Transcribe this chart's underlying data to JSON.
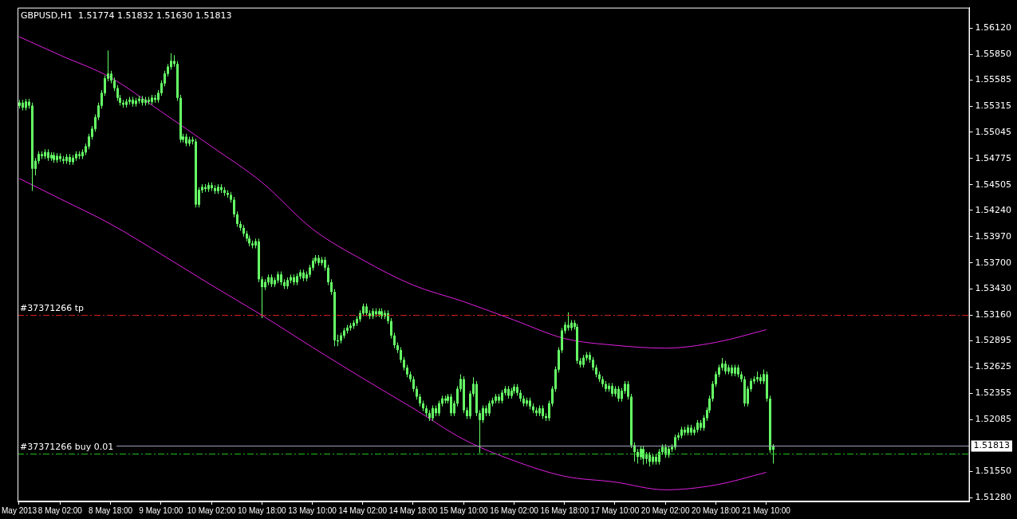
{
  "chart_data": {
    "type": "candlestick",
    "title": "GBPUSD,H1  1.51774 1.51832 1.51630 1.51813",
    "color": "#66ff66",
    "categories": [
      "May 2013",
      null,
      null,
      null,
      null,
      null,
      null,
      null,
      null,
      null,
      null,
      null,
      null,
      "8 May 02:00",
      null,
      null,
      null,
      null,
      null,
      null,
      null,
      null,
      null,
      null,
      null,
      null,
      null,
      null,
      null,
      "8 May 18:00",
      null,
      null,
      null,
      null,
      null,
      null,
      null,
      null,
      null,
      null,
      null,
      null,
      null,
      null,
      null,
      "9 May 10:00",
      null,
      null,
      null,
      null,
      null,
      null,
      null,
      null,
      null,
      null,
      null,
      null,
      null,
      null,
      null,
      "10 May 02:00",
      null,
      null,
      null,
      null,
      null,
      null,
      null,
      null,
      null,
      null,
      null,
      null,
      null,
      null,
      null,
      "10 May 18:00",
      null,
      null,
      null,
      null,
      null,
      null,
      null,
      null,
      null,
      null,
      null,
      null,
      null,
      null,
      null,
      "13 May 10:00",
      null,
      null,
      null,
      null,
      null,
      null,
      null,
      null,
      null,
      null,
      null,
      null,
      null,
      null,
      null,
      "14 May 02:00",
      null,
      null,
      null,
      null,
      null,
      null,
      null,
      null,
      null,
      null,
      null,
      null,
      null,
      null,
      null,
      "14 May 18:00",
      null,
      null,
      null,
      null,
      null,
      null,
      null,
      null,
      null,
      null,
      null,
      null,
      null,
      null,
      null,
      "15 May 10:00",
      null,
      null,
      null,
      null,
      null,
      null,
      null,
      null,
      null,
      null,
      null,
      null,
      null,
      null,
      null,
      "16 May 02:00",
      null,
      null,
      null,
      null,
      null,
      null,
      null,
      null,
      null,
      null,
      null,
      null,
      null,
      null,
      null,
      "16 May 18:00",
      null,
      null,
      null,
      null,
      null,
      null,
      null,
      null,
      null,
      null,
      null,
      null,
      null,
      null,
      null,
      "17 May 10:00",
      null,
      null,
      null,
      null,
      null,
      null,
      null,
      null,
      null,
      null,
      null,
      null,
      null,
      null,
      null,
      "20 May 02:00",
      null,
      null,
      null,
      null,
      null,
      null,
      null,
      null,
      null,
      null,
      null,
      null,
      null,
      null,
      null,
      "20 May 18:00",
      null,
      null,
      null,
      null,
      null,
      null,
      null,
      null,
      null,
      null,
      null,
      null,
      null,
      null,
      null,
      "21 May 10:00",
      null,
      null,
      null,
      null,
      null,
      null,
      null,
      null,
      null,
      null,
      null,
      null,
      null,
      null,
      null,
      null,
      null,
      null,
      null,
      null,
      null,
      null,
      null,
      null,
      null,
      null,
      null,
      null,
      null,
      null,
      null,
      null,
      null,
      null,
      null,
      null,
      null,
      null,
      null,
      null,
      null,
      null,
      null,
      null,
      null,
      null,
      null,
      null,
      null,
      null,
      null,
      null,
      null,
      null,
      null,
      null,
      null,
      null,
      null,
      null,
      null,
      null,
      null,
      null
    ],
    "ohlc": [
      [
        1.5532,
        1.5538,
        1.5529,
        1.5535
      ],
      [
        1.5535,
        1.5538,
        1.5527,
        1.553
      ],
      [
        1.553,
        1.5539,
        1.5527,
        1.5536
      ],
      [
        1.5536,
        1.5539,
        1.5529,
        1.5532
      ],
      [
        1.5532,
        1.5535,
        1.5444,
        1.5467
      ],
      [
        1.5467,
        1.5478,
        1.546,
        1.5475
      ],
      [
        1.5475,
        1.5485,
        1.5472,
        1.5482
      ],
      [
        1.5482,
        1.5485,
        1.5477,
        1.548
      ],
      [
        1.548,
        1.5487,
        1.5477,
        1.5484
      ],
      [
        1.5484,
        1.5487,
        1.5475,
        1.5478
      ],
      [
        1.5478,
        1.5484,
        1.5475,
        1.5481
      ],
      [
        1.5481,
        1.5484,
        1.5473,
        1.5476
      ],
      [
        1.5476,
        1.5483,
        1.5473,
        1.548
      ],
      [
        1.548,
        1.5483,
        1.5474,
        1.5477
      ],
      [
        1.5477,
        1.548,
        1.5472,
        1.5475
      ],
      [
        1.5475,
        1.5482,
        1.5472,
        1.5479
      ],
      [
        1.5479,
        1.5482,
        1.5471,
        1.5474
      ],
      [
        1.5474,
        1.5481,
        1.5471,
        1.5478
      ],
      [
        1.5478,
        1.5485,
        1.5475,
        1.5482
      ],
      [
        1.5482,
        1.5485,
        1.5477,
        1.548
      ],
      [
        1.548,
        1.5487,
        1.5477,
        1.5484
      ],
      [
        1.5484,
        1.5493,
        1.5481,
        1.549
      ],
      [
        1.549,
        1.5503,
        1.5487,
        1.55
      ],
      [
        1.55,
        1.5511,
        1.5497,
        1.5508
      ],
      [
        1.5508,
        1.5523,
        1.5505,
        1.552
      ],
      [
        1.552,
        1.5535,
        1.5517,
        1.5532
      ],
      [
        1.5532,
        1.5548,
        1.5529,
        1.5545
      ],
      [
        1.5545,
        1.5563,
        1.5542,
        1.556
      ],
      [
        1.556,
        1.5589,
        1.5557,
        1.5565
      ],
      [
        1.5565,
        1.5568,
        1.5555,
        1.5558
      ],
      [
        1.5558,
        1.5561,
        1.5547,
        1.555
      ],
      [
        1.555,
        1.5553,
        1.5537,
        1.554
      ],
      [
        1.554,
        1.5543,
        1.5532,
        1.5535
      ],
      [
        1.5535,
        1.5538,
        1.553,
        1.5533
      ],
      [
        1.5533,
        1.5539,
        1.553,
        1.5536
      ],
      [
        1.5536,
        1.5541,
        1.5533,
        1.5538
      ],
      [
        1.5538,
        1.5541,
        1.5531,
        1.5534
      ],
      [
        1.5534,
        1.554,
        1.5531,
        1.5537
      ],
      [
        1.5537,
        1.5542,
        1.5534,
        1.5539
      ],
      [
        1.5539,
        1.5542,
        1.5532,
        1.5535
      ],
      [
        1.5535,
        1.5541,
        1.5532,
        1.5538
      ],
      [
        1.5538,
        1.5541,
        1.5533,
        1.5536
      ],
      [
        1.5536,
        1.5543,
        1.5533,
        1.554
      ],
      [
        1.554,
        1.5543,
        1.5535,
        1.5538
      ],
      [
        1.5538,
        1.5548,
        1.5535,
        1.5545
      ],
      [
        1.5545,
        1.5558,
        1.5542,
        1.5555
      ],
      [
        1.5555,
        1.5568,
        1.5552,
        1.5565
      ],
      [
        1.5565,
        1.5575,
        1.5562,
        1.5572
      ],
      [
        1.5572,
        1.5586,
        1.5569,
        1.5578
      ],
      [
        1.5578,
        1.5584,
        1.5572,
        1.5575
      ],
      [
        1.5575,
        1.5578,
        1.5537,
        1.554
      ],
      [
        1.554,
        1.5543,
        1.5494,
        1.5497
      ],
      [
        1.5497,
        1.5503,
        1.5494,
        1.55
      ],
      [
        1.55,
        1.5503,
        1.549,
        1.5493
      ],
      [
        1.5493,
        1.55,
        1.549,
        1.5497
      ],
      [
        1.5497,
        1.55,
        1.5492,
        1.5495
      ],
      [
        1.5495,
        1.5498,
        1.5427,
        1.543
      ],
      [
        1.543,
        1.5448,
        1.5427,
        1.5445
      ],
      [
        1.5445,
        1.5451,
        1.5442,
        1.5448
      ],
      [
        1.5448,
        1.5451,
        1.5443,
        1.5446
      ],
      [
        1.5446,
        1.5453,
        1.5443,
        1.545
      ],
      [
        1.545,
        1.5453,
        1.5444,
        1.5447
      ],
      [
        1.5447,
        1.545,
        1.5441,
        1.5444
      ],
      [
        1.5444,
        1.5451,
        1.5441,
        1.5448
      ],
      [
        1.5448,
        1.5451,
        1.5442,
        1.5445
      ],
      [
        1.5445,
        1.5448,
        1.5439,
        1.5442
      ],
      [
        1.5442,
        1.5445,
        1.5437,
        1.544
      ],
      [
        1.544,
        1.5443,
        1.5432,
        1.5435
      ],
      [
        1.5435,
        1.5438,
        1.5417,
        1.542
      ],
      [
        1.542,
        1.5423,
        1.5407,
        1.541
      ],
      [
        1.541,
        1.5413,
        1.5403,
        1.5406
      ],
      [
        1.5406,
        1.5409,
        1.5397,
        1.54
      ],
      [
        1.54,
        1.5403,
        1.5392,
        1.5395
      ],
      [
        1.5395,
        1.5398,
        1.5387,
        1.539
      ],
      [
        1.539,
        1.5393,
        1.5385,
        1.5388
      ],
      [
        1.5388,
        1.5395,
        1.5385,
        1.5392
      ],
      [
        1.5392,
        1.5395,
        1.535,
        1.5353
      ],
      [
        1.5353,
        1.5356,
        1.5313,
        1.5345
      ],
      [
        1.5345,
        1.5353,
        1.5342,
        1.535
      ],
      [
        1.535,
        1.5358,
        1.5347,
        1.5355
      ],
      [
        1.5355,
        1.5358,
        1.5345,
        1.5348
      ],
      [
        1.5348,
        1.5355,
        1.5345,
        1.5352
      ],
      [
        1.5352,
        1.5361,
        1.5349,
        1.5358
      ],
      [
        1.5358,
        1.5361,
        1.5347,
        1.535
      ],
      [
        1.535,
        1.5353,
        1.5343,
        1.5346
      ],
      [
        1.5346,
        1.5355,
        1.5343,
        1.5352
      ],
      [
        1.5352,
        1.5358,
        1.5349,
        1.5355
      ],
      [
        1.5355,
        1.5358,
        1.5347,
        1.535
      ],
      [
        1.535,
        1.5359,
        1.5347,
        1.5356
      ],
      [
        1.5356,
        1.5363,
        1.5353,
        1.536
      ],
      [
        1.536,
        1.5363,
        1.5351,
        1.5354
      ],
      [
        1.5354,
        1.5361,
        1.5351,
        1.5358
      ],
      [
        1.5358,
        1.5368,
        1.5355,
        1.5365
      ],
      [
        1.5365,
        1.5375,
        1.5362,
        1.5372
      ],
      [
        1.5372,
        1.5378,
        1.5369,
        1.5375
      ],
      [
        1.5375,
        1.5378,
        1.5367,
        1.537
      ],
      [
        1.537,
        1.5376,
        1.5367,
        1.5373
      ],
      [
        1.5373,
        1.5376,
        1.5362,
        1.5365
      ],
      [
        1.5365,
        1.5368,
        1.5347,
        1.535
      ],
      [
        1.535,
        1.5353,
        1.5337,
        1.534
      ],
      [
        1.534,
        1.5343,
        1.5284,
        1.529
      ],
      [
        1.529,
        1.5296,
        1.5284,
        1.529
      ],
      [
        1.529,
        1.5298,
        1.5287,
        1.5295
      ],
      [
        1.5295,
        1.5303,
        1.5292,
        1.53
      ],
      [
        1.53,
        1.5306,
        1.5297,
        1.5303
      ],
      [
        1.5303,
        1.5308,
        1.53,
        1.5305
      ],
      [
        1.5305,
        1.5311,
        1.5302,
        1.5308
      ],
      [
        1.5308,
        1.5315,
        1.5305,
        1.5312
      ],
      [
        1.5312,
        1.5321,
        1.5309,
        1.5318
      ],
      [
        1.5318,
        1.5328,
        1.5315,
        1.5325
      ],
      [
        1.5325,
        1.5328,
        1.5315,
        1.5318
      ],
      [
        1.5318,
        1.5321,
        1.5312,
        1.5315
      ],
      [
        1.5315,
        1.5323,
        1.5312,
        1.532
      ],
      [
        1.532,
        1.5323,
        1.5314,
        1.5317
      ],
      [
        1.5317,
        1.5323,
        1.5314,
        1.532
      ],
      [
        1.532,
        1.5323,
        1.5312,
        1.5315
      ],
      [
        1.5315,
        1.5321,
        1.5312,
        1.5318
      ],
      [
        1.5318,
        1.5321,
        1.5307,
        1.531
      ],
      [
        1.531,
        1.5313,
        1.5292,
        1.5295
      ],
      [
        1.5295,
        1.5298,
        1.5282,
        1.5285
      ],
      [
        1.5285,
        1.5288,
        1.5277,
        1.528
      ],
      [
        1.528,
        1.5283,
        1.5267,
        1.527
      ],
      [
        1.527,
        1.5273,
        1.5259,
        1.5262
      ],
      [
        1.5262,
        1.5265,
        1.5252,
        1.5255
      ],
      [
        1.5255,
        1.5258,
        1.5247,
        1.525
      ],
      [
        1.525,
        1.5253,
        1.5237,
        1.524
      ],
      [
        1.524,
        1.5243,
        1.5229,
        1.5232
      ],
      [
        1.5232,
        1.5235,
        1.5222,
        1.5225
      ],
      [
        1.5225,
        1.5228,
        1.5217,
        1.522
      ],
      [
        1.522,
        1.5223,
        1.5212,
        1.5215
      ],
      [
        1.5215,
        1.5218,
        1.5207,
        1.521
      ],
      [
        1.521,
        1.5223,
        1.5207,
        1.522
      ],
      [
        1.522,
        1.5223,
        1.5212,
        1.5215
      ],
      [
        1.5215,
        1.5228,
        1.5212,
        1.5225
      ],
      [
        1.5225,
        1.5233,
        1.5222,
        1.523
      ],
      [
        1.523,
        1.5233,
        1.5225,
        1.5228
      ],
      [
        1.5228,
        1.5235,
        1.5225,
        1.5232
      ],
      [
        1.5232,
        1.5235,
        1.5212,
        1.5215
      ],
      [
        1.5215,
        1.5228,
        1.5212,
        1.5225
      ],
      [
        1.5225,
        1.5243,
        1.5222,
        1.524
      ],
      [
        1.524,
        1.5255,
        1.5237,
        1.525
      ],
      [
        1.525,
        1.5253,
        1.5215,
        1.5218
      ],
      [
        1.5218,
        1.5221,
        1.5209,
        1.5212
      ],
      [
        1.5212,
        1.5238,
        1.5209,
        1.5235
      ],
      [
        1.5235,
        1.5252,
        1.5232,
        1.5245
      ],
      [
        1.5245,
        1.5248,
        1.5212,
        1.5215
      ],
      [
        1.5215,
        1.5218,
        1.5174,
        1.5208
      ],
      [
        1.5208,
        1.5223,
        1.5205,
        1.522
      ],
      [
        1.522,
        1.5223,
        1.5212,
        1.5215
      ],
      [
        1.5215,
        1.5228,
        1.5212,
        1.5225
      ],
      [
        1.5225,
        1.5231,
        1.5222,
        1.5228
      ],
      [
        1.5228,
        1.5235,
        1.5225,
        1.5232
      ],
      [
        1.5232,
        1.5235,
        1.5225,
        1.5228
      ],
      [
        1.5228,
        1.5239,
        1.5225,
        1.5236
      ],
      [
        1.5236,
        1.5243,
        1.5233,
        1.524
      ],
      [
        1.524,
        1.5243,
        1.523,
        1.5233
      ],
      [
        1.5233,
        1.5241,
        1.523,
        1.5238
      ],
      [
        1.5238,
        1.5245,
        1.5235,
        1.5242
      ],
      [
        1.5242,
        1.5245,
        1.5233,
        1.5236
      ],
      [
        1.5236,
        1.5239,
        1.5227,
        1.523
      ],
      [
        1.523,
        1.5233,
        1.5222,
        1.5225
      ],
      [
        1.5225,
        1.5231,
        1.5222,
        1.5228
      ],
      [
        1.5228,
        1.5231,
        1.5219,
        1.5222
      ],
      [
        1.5222,
        1.5225,
        1.5215,
        1.5218
      ],
      [
        1.5218,
        1.5221,
        1.5212,
        1.5215
      ],
      [
        1.5215,
        1.5223,
        1.5212,
        1.522
      ],
      [
        1.522,
        1.5223,
        1.5209,
        1.5212
      ],
      [
        1.5212,
        1.5215,
        1.5207,
        1.521
      ],
      [
        1.521,
        1.5228,
        1.5207,
        1.5225
      ],
      [
        1.5225,
        1.5243,
        1.5222,
        1.524
      ],
      [
        1.524,
        1.5263,
        1.5237,
        1.526
      ],
      [
        1.526,
        1.5283,
        1.5257,
        1.528
      ],
      [
        1.528,
        1.5303,
        1.5277,
        1.53
      ],
      [
        1.53,
        1.5309,
        1.5297,
        1.5306
      ],
      [
        1.5306,
        1.5319,
        1.53,
        1.5303
      ],
      [
        1.5303,
        1.5311,
        1.53,
        1.5308
      ],
      [
        1.5308,
        1.5311,
        1.5301,
        1.5304
      ],
      [
        1.5304,
        1.5307,
        1.5266,
        1.5269
      ],
      [
        1.5269,
        1.5272,
        1.5262,
        1.5265
      ],
      [
        1.5265,
        1.5275,
        1.5262,
        1.5272
      ],
      [
        1.5272,
        1.5278,
        1.5269,
        1.5275
      ],
      [
        1.5275,
        1.5278,
        1.5267,
        1.527
      ],
      [
        1.527,
        1.5273,
        1.5259,
        1.5262
      ],
      [
        1.5262,
        1.5265,
        1.5252,
        1.5255
      ],
      [
        1.5255,
        1.5258,
        1.5247,
        1.525
      ],
      [
        1.525,
        1.5253,
        1.5242,
        1.5245
      ],
      [
        1.5245,
        1.5248,
        1.5237,
        1.524
      ],
      [
        1.524,
        1.5246,
        1.5237,
        1.5243
      ],
      [
        1.5243,
        1.5246,
        1.5232,
        1.5235
      ],
      [
        1.5235,
        1.5243,
        1.5232,
        1.524
      ],
      [
        1.524,
        1.5243,
        1.5227,
        1.523
      ],
      [
        1.523,
        1.5241,
        1.5227,
        1.5238
      ],
      [
        1.5238,
        1.5248,
        1.5235,
        1.5245
      ],
      [
        1.5245,
        1.5248,
        1.5229,
        1.5232
      ],
      [
        1.5232,
        1.5235,
        1.5179,
        1.5182
      ],
      [
        1.5182,
        1.5185,
        1.5165,
        1.5175
      ],
      [
        1.5175,
        1.5178,
        1.5163,
        1.517
      ],
      [
        1.517,
        1.5181,
        1.5167,
        1.5178
      ],
      [
        1.5178,
        1.5181,
        1.5162,
        1.5168
      ],
      [
        1.5168,
        1.5175,
        1.5163,
        1.5172
      ],
      [
        1.5172,
        1.5175,
        1.516,
        1.5165
      ],
      [
        1.5165,
        1.5173,
        1.5162,
        1.517
      ],
      [
        1.517,
        1.5173,
        1.5162,
        1.5165
      ],
      [
        1.5165,
        1.5178,
        1.5162,
        1.5175
      ],
      [
        1.5175,
        1.5183,
        1.5172,
        1.518
      ],
      [
        1.518,
        1.5183,
        1.5169,
        1.5172
      ],
      [
        1.5172,
        1.5181,
        1.5169,
        1.5178
      ],
      [
        1.5178,
        1.5183,
        1.5175,
        1.518
      ],
      [
        1.518,
        1.5193,
        1.5177,
        1.519
      ],
      [
        1.519,
        1.5195,
        1.5187,
        1.5192
      ],
      [
        1.5192,
        1.5201,
        1.5189,
        1.5198
      ],
      [
        1.5198,
        1.5201,
        1.5192,
        1.5195
      ],
      [
        1.5195,
        1.5203,
        1.5192,
        1.52
      ],
      [
        1.52,
        1.5203,
        1.5192,
        1.5195
      ],
      [
        1.5195,
        1.5201,
        1.5192,
        1.5198
      ],
      [
        1.5198,
        1.5208,
        1.5195,
        1.5205
      ],
      [
        1.5205,
        1.5208,
        1.5197,
        1.52
      ],
      [
        1.52,
        1.5213,
        1.5197,
        1.521
      ],
      [
        1.521,
        1.5221,
        1.5207,
        1.5218
      ],
      [
        1.5218,
        1.5233,
        1.5215,
        1.523
      ],
      [
        1.523,
        1.5248,
        1.5227,
        1.5245
      ],
      [
        1.5245,
        1.5258,
        1.5242,
        1.5255
      ],
      [
        1.5255,
        1.5265,
        1.5252,
        1.5262
      ],
      [
        1.5262,
        1.5272,
        1.5259,
        1.5266
      ],
      [
        1.5266,
        1.5269,
        1.5255,
        1.5258
      ],
      [
        1.5258,
        1.5265,
        1.5255,
        1.5262
      ],
      [
        1.5262,
        1.5265,
        1.5253,
        1.5256
      ],
      [
        1.5256,
        1.5265,
        1.5253,
        1.5262
      ],
      [
        1.5262,
        1.5265,
        1.5252,
        1.5255
      ],
      [
        1.5255,
        1.5258,
        1.5247,
        1.525
      ],
      [
        1.525,
        1.5253,
        1.5222,
        1.5225
      ],
      [
        1.5225,
        1.5243,
        1.5222,
        1.524
      ],
      [
        1.524,
        1.5251,
        1.5237,
        1.5248
      ],
      [
        1.5248,
        1.5253,
        1.5245,
        1.525
      ],
      [
        1.525,
        1.5258,
        1.5247,
        1.5252
      ],
      [
        1.5252,
        1.5255,
        1.5245,
        1.5248
      ],
      [
        1.5248,
        1.526,
        1.5245,
        1.5255
      ],
      [
        1.5255,
        1.5258,
        1.5227,
        1.523
      ],
      [
        1.523,
        1.5233,
        1.5174,
        1.5177
      ],
      [
        1.51774,
        1.51832,
        1.5163,
        1.51813
      ],
      null,
      null,
      null,
      null,
      null,
      null,
      null,
      null,
      null,
      null,
      null,
      null,
      null,
      null,
      null,
      null,
      null,
      null,
      null,
      null,
      null,
      null,
      null,
      null,
      null,
      null,
      null,
      null,
      null,
      null,
      null,
      null,
      null,
      null,
      null,
      null,
      null,
      null,
      null,
      null,
      null,
      null,
      null,
      null,
      null,
      null,
      null,
      null,
      null,
      null,
      null,
      null,
      null,
      null,
      null,
      null,
      null,
      null,
      null,
      null,
      null,
      null
    ],
    "series": [
      {
        "type": "line",
        "color": "#e020e0",
        "x": [
          "May 2013",
          "8 May 02:00",
          "8 May 18:00",
          "9 May 10:00",
          "10 May 02:00",
          "10 May 18:00",
          "13 May 10:00",
          "14 May 02:00",
          "14 May 18:00",
          "15 May 10:00",
          "16 May 02:00",
          "16 May 18:00",
          "17 May 10:00",
          "20 May 02:00",
          "20 May 18:00",
          "21 May 10:00"
        ],
        "values": [
          1.5603,
          1.5584,
          1.5561,
          1.5526,
          1.549,
          1.5453,
          1.5405,
          1.5373,
          1.5347,
          1.533,
          1.5311,
          1.5292,
          1.5285,
          1.5282,
          1.5288,
          1.5301
        ]
      },
      {
        "type": "line",
        "color": "#e020e0",
        "x": [
          "May 2013",
          "8 May 02:00",
          "8 May 18:00",
          "9 May 10:00",
          "10 May 02:00",
          "10 May 18:00",
          "13 May 10:00",
          "14 May 02:00",
          "14 May 18:00",
          "15 May 10:00",
          "16 May 02:00",
          "16 May 18:00",
          "17 May 10:00",
          "20 May 02:00",
          "20 May 18:00",
          "21 May 10:00"
        ],
        "values": [
          1.5457,
          1.5436,
          1.541,
          1.5379,
          1.5347,
          1.5316,
          1.5283,
          1.5251,
          1.522,
          1.5188,
          1.5166,
          1.515,
          1.5144,
          1.5136,
          1.5141,
          1.5154
        ]
      }
    ],
    "ylim": [
      1.5124,
      1.5633
    ],
    "yticks": [
      {
        "value": 1.5612,
        "label": "1.56120"
      },
      {
        "value": 1.5585,
        "label": "1.55850"
      },
      {
        "value": 1.55585,
        "label": "1.55585"
      },
      {
        "value": 1.55315,
        "label": "1.55315"
      },
      {
        "value": 1.55045,
        "label": "1.55045"
      },
      {
        "value": 1.54775,
        "label": "1.54775"
      },
      {
        "value": 1.54505,
        "label": "1.54505"
      },
      {
        "value": 1.5424,
        "label": "1.54240"
      },
      {
        "value": 1.5397,
        "label": "1.53970"
      },
      {
        "value": 1.537,
        "label": "1.53700"
      },
      {
        "value": 1.5343,
        "label": "1.53430"
      },
      {
        "value": 1.5316,
        "label": "1.53160"
      },
      {
        "value": 1.52895,
        "label": "1.52895"
      },
      {
        "value": 1.52625,
        "label": "1.52625"
      },
      {
        "value": 1.52355,
        "label": "1.52355"
      },
      {
        "value": 1.52085,
        "label": "1.52085"
      },
      {
        "value": 1.5155,
        "label": "1.51550"
      },
      {
        "value": 1.5128,
        "label": "1.51280"
      }
    ],
    "ref_lines": [
      {
        "axis": "y",
        "value": 1.5316,
        "label": "#37371266 tp",
        "color": "#d02020",
        "line_style": "dashed"
      },
      {
        "axis": "y",
        "value": 1.5173,
        "label": "#37371266 buy 0.01",
        "color": "#20c020",
        "line_style": "dashed"
      },
      {
        "axis": "y",
        "value": 1.51813,
        "label": "1.51813",
        "color": "#a0a0b8",
        "line_style": "solid"
      }
    ]
  }
}
